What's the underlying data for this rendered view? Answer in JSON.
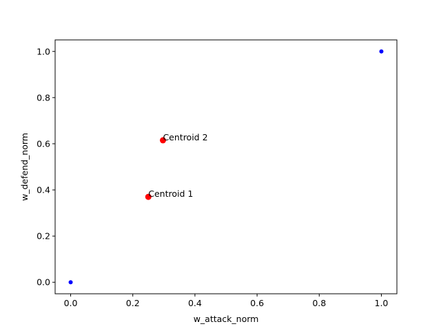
{
  "chart_data": {
    "type": "scatter",
    "title": "",
    "xlabel": "w_attack_norm",
    "ylabel": "w_defend_norm",
    "xlim": [
      -0.05,
      1.05
    ],
    "ylim": [
      -0.05,
      1.05
    ],
    "xticks": [
      0.0,
      0.2,
      0.4,
      0.6,
      0.8,
      1.0
    ],
    "yticks": [
      0.0,
      0.2,
      0.4,
      0.6,
      0.8,
      1.0
    ],
    "xtick_labels": [
      "0.0",
      "0.2",
      "0.4",
      "0.6",
      "0.8",
      "1.0"
    ],
    "ytick_labels": [
      "0.0",
      "0.2",
      "0.4",
      "0.6",
      "0.8",
      "1.0"
    ],
    "grid": false,
    "legend": "none",
    "series": [
      {
        "color": "#0000ff",
        "marker": "small-dot",
        "points": [
          {
            "x": 0.0,
            "y": 0.0
          },
          {
            "x": 1.0,
            "y": 1.0
          }
        ]
      },
      {
        "color": "#ff0000",
        "marker": "large-dot",
        "points": [
          {
            "x": 0.25,
            "y": 0.37,
            "label": "Centroid 1"
          },
          {
            "x": 0.297,
            "y": 0.615,
            "label": "Centroid 2"
          }
        ]
      }
    ]
  }
}
